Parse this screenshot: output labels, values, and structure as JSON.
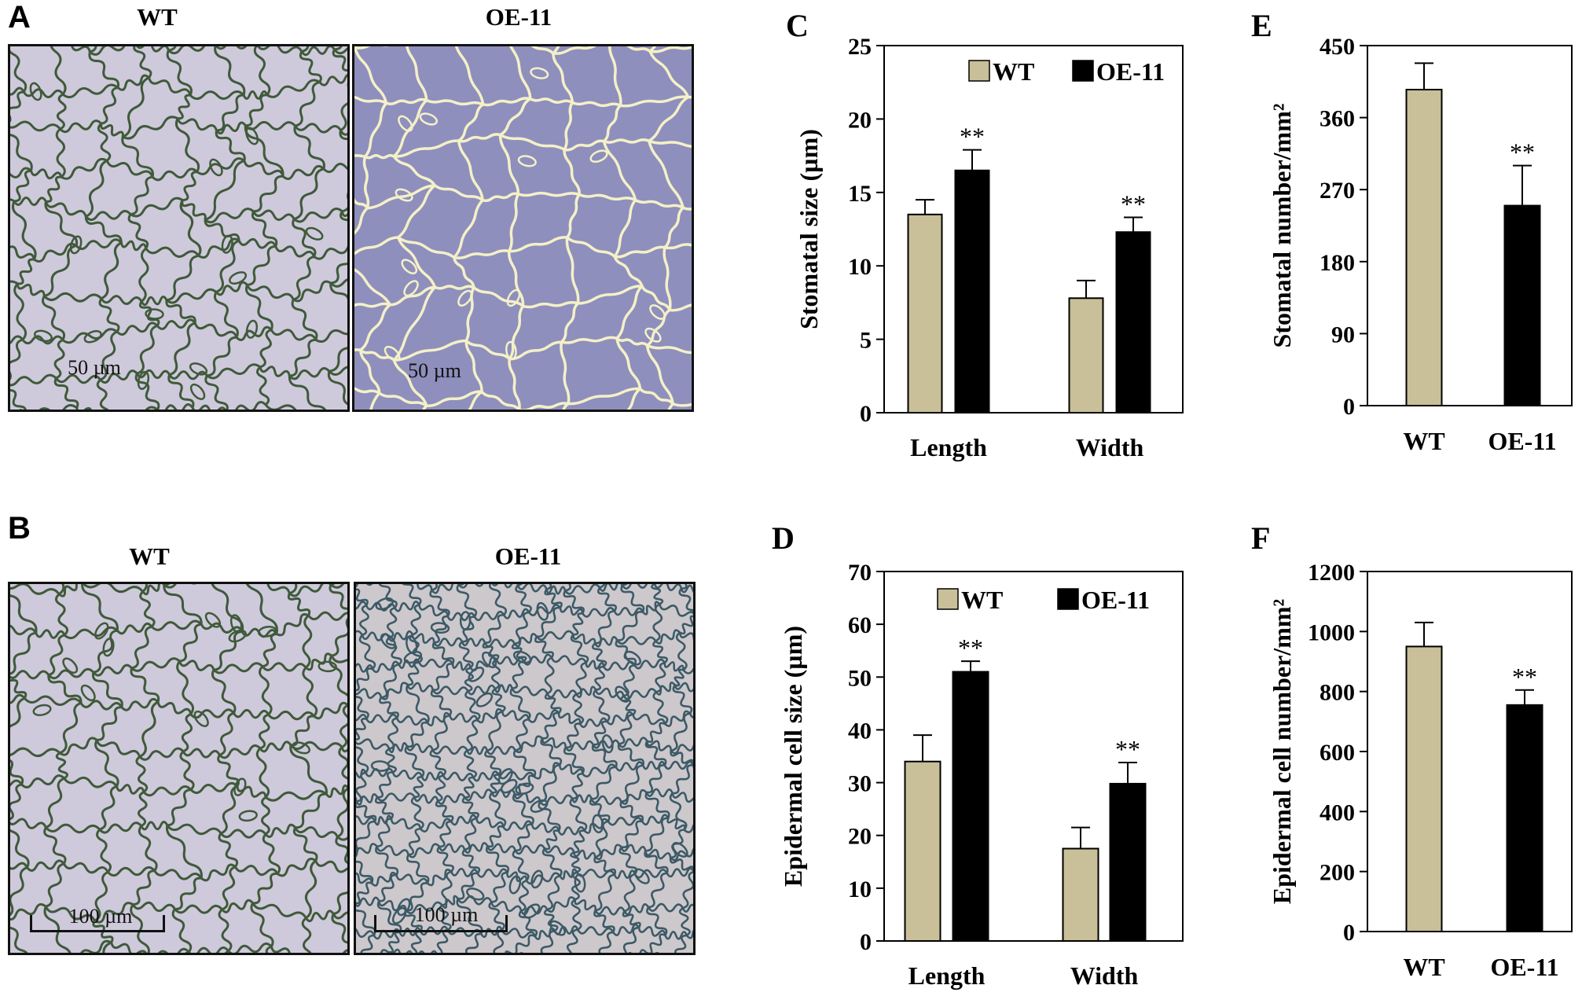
{
  "panels": {
    "A": {
      "letter": "A",
      "titles": [
        "WT",
        "OE-11"
      ],
      "scale_labels": [
        "50 µm",
        "50 µm"
      ]
    },
    "B": {
      "letter": "B",
      "titles": [
        "WT",
        "OE-11"
      ],
      "scale_labels": [
        "100 µm",
        "100 µm"
      ]
    }
  },
  "colors": {
    "wt": "#c9bf98",
    "oe": "#000000",
    "wt_cells": "#3f5a3a",
    "oe_cells_a": "#f4f0c8",
    "oe_cells_b": "#3c5a66",
    "wt_bg": "#cfc9dc",
    "oe_bg_a": "#8e8fbd",
    "oe_bg_b": "#cdc8cc"
  },
  "chart_data": [
    {
      "id": "C",
      "letter": "C",
      "type": "bar",
      "categories": [
        "Length",
        "Width"
      ],
      "series": [
        {
          "name": "WT",
          "values": [
            13.5,
            7.8
          ],
          "errors": [
            1.0,
            1.2
          ],
          "significance": [
            "",
            ""
          ]
        },
        {
          "name": "OE-11",
          "values": [
            16.5,
            12.3
          ],
          "errors": [
            1.4,
            1.0
          ],
          "significance": [
            "**",
            "**"
          ]
        }
      ],
      "ylabel": "Stomatal size (µm)",
      "ylim": [
        0,
        25
      ],
      "yticks": [
        0,
        5,
        10,
        15,
        20,
        25
      ],
      "legend": "top"
    },
    {
      "id": "D",
      "letter": "D",
      "type": "bar",
      "categories": [
        "Length",
        "Width"
      ],
      "series": [
        {
          "name": "WT",
          "values": [
            34,
            17.5
          ],
          "errors": [
            5,
            4
          ],
          "significance": [
            "",
            ""
          ]
        },
        {
          "name": "OE-11",
          "values": [
            51,
            29.8
          ],
          "errors": [
            2,
            4
          ],
          "significance": [
            "**",
            "**"
          ]
        }
      ],
      "ylabel": "Epidermal cell size (µm)",
      "ylim": [
        0,
        70
      ],
      "yticks": [
        0,
        10,
        20,
        30,
        40,
        50,
        60,
        70
      ],
      "legend": "top"
    },
    {
      "id": "E",
      "letter": "E",
      "type": "bar",
      "categories": [
        "WT",
        "OE-11"
      ],
      "values": [
        395,
        250
      ],
      "errors": [
        33,
        50
      ],
      "significance": [
        "",
        "**"
      ],
      "ylabel": "Stomatal number/mm²",
      "ylim": [
        0,
        450
      ],
      "yticks": [
        0,
        90,
        180,
        270,
        360,
        450
      ]
    },
    {
      "id": "F",
      "letter": "F",
      "type": "bar",
      "categories": [
        "WT",
        "OE-11"
      ],
      "values": [
        950,
        755
      ],
      "errors": [
        80,
        50
      ],
      "significance": [
        "",
        "**"
      ],
      "ylabel": "Epidermal cell number/mm²",
      "ylim": [
        0,
        1200
      ],
      "yticks": [
        0,
        200,
        400,
        600,
        800,
        1000,
        1200
      ]
    }
  ]
}
